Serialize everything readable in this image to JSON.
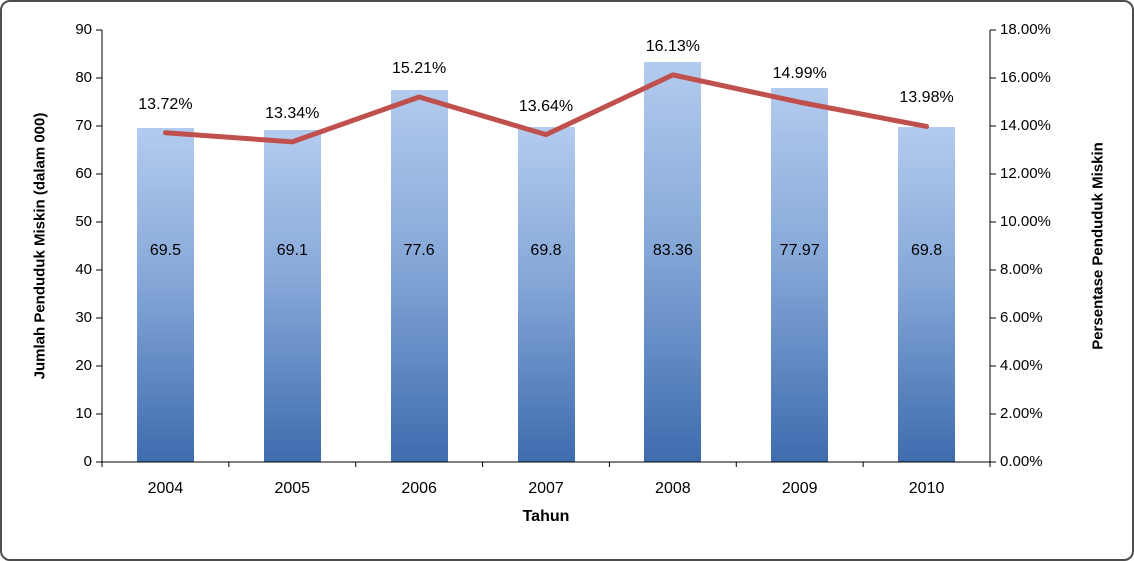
{
  "chart_data": {
    "type": "combo",
    "title": "",
    "categories": [
      "2004",
      "2005",
      "2006",
      "2007",
      "2008",
      "2009",
      "2010"
    ],
    "series": [
      {
        "name": "Jumlah Penduduk Miskin (dalam 000)",
        "type": "bar",
        "axis": "left",
        "values": [
          69.5,
          69.1,
          77.6,
          69.8,
          83.36,
          77.97,
          69.8
        ],
        "labels": [
          "69.5",
          "69.1",
          "77.6",
          "69.8",
          "83.36",
          "77.97",
          "69.8"
        ],
        "color_top": "#b3cbee",
        "color_bottom": "#3e6cae"
      },
      {
        "name": "Persentase Penduduk Miskin",
        "type": "line",
        "axis": "right",
        "values": [
          13.72,
          13.34,
          15.21,
          13.64,
          16.13,
          14.99,
          13.98
        ],
        "labels": [
          "13.72%",
          "13.34%",
          "15.21%",
          "13.64%",
          "16.13%",
          "14.99%",
          "13.98%"
        ],
        "color": "#c0504d"
      }
    ],
    "left_axis": {
      "title": "Jumlah Penduduk Miskin (dalam 000)",
      "min": 0,
      "max": 90,
      "step": 10,
      "tick_labels": [
        "0",
        "10",
        "20",
        "30",
        "40",
        "50",
        "60",
        "70",
        "80",
        "90"
      ]
    },
    "right_axis": {
      "title": "Persentase Penduduk Miskin",
      "min": 0,
      "max": 18,
      "step": 2,
      "tick_labels": [
        "0.00%",
        "2.00%",
        "4.00%",
        "6.00%",
        "8.00%",
        "10.00%",
        "12.00%",
        "14.00%",
        "16.00%",
        "18.00%"
      ]
    },
    "x_axis": {
      "title": "Tahun"
    },
    "grid": false,
    "legend": "none"
  }
}
